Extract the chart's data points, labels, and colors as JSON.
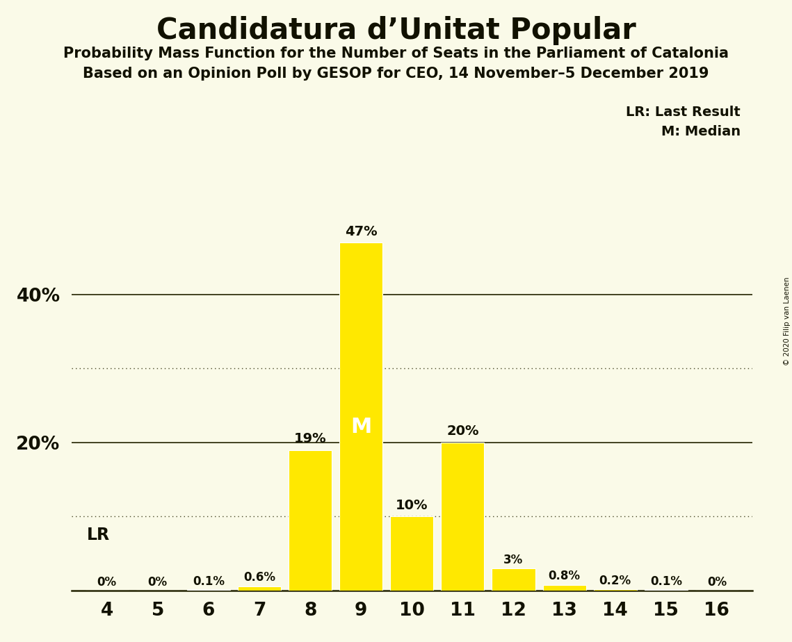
{
  "title": "Candidatura d’Unitat Popular",
  "subtitle1": "Probability Mass Function for the Number of Seats in the Parliament of Catalonia",
  "subtitle2": "Based on an Opinion Poll by GESOP for CEO, 14 November–5 December 2019",
  "copyright": "© 2020 Filip van Laenen",
  "legend_lr": "LR: Last Result",
  "legend_m": "M: Median",
  "seats": [
    4,
    5,
    6,
    7,
    8,
    9,
    10,
    11,
    12,
    13,
    14,
    15,
    16
  ],
  "values": [
    0.0,
    0.0,
    0.1,
    0.6,
    19.0,
    47.0,
    10.0,
    20.0,
    3.0,
    0.8,
    0.2,
    0.1,
    0.0
  ],
  "labels": [
    "0%",
    "0%",
    "0.1%",
    "0.6%",
    "19%",
    "47%",
    "10%",
    "20%",
    "3%",
    "0.8%",
    "0.2%",
    "0.1%",
    "0%"
  ],
  "bar_color": "#FFE800",
  "background_color": "#FAFAE8",
  "text_color": "#111100",
  "median_seat": 9,
  "last_result_seat": 4,
  "ylim": [
    0,
    52
  ],
  "dotted_lines": [
    10,
    30
  ],
  "solid_lines": [
    20,
    40
  ]
}
